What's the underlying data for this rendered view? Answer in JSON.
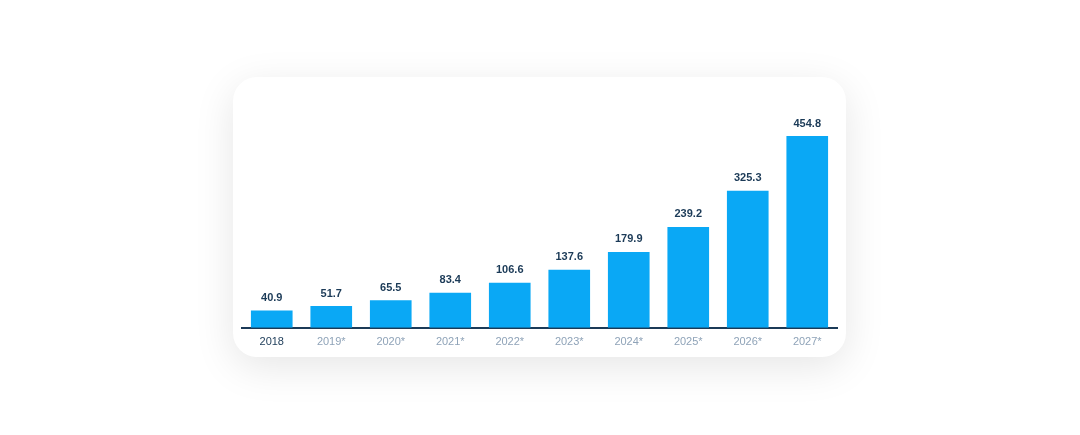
{
  "chart_data": {
    "type": "bar",
    "categories": [
      "2018",
      "2019*",
      "2020*",
      "2021*",
      "2022*",
      "2023*",
      "2024*",
      "2025*",
      "2026*",
      "2027*"
    ],
    "values": [
      40.9,
      51.7,
      65.5,
      83.4,
      106.6,
      137.6,
      179.9,
      239.2,
      325.3,
      454.8
    ],
    "color": "#0aa8f5",
    "data_labels": true,
    "grid": false,
    "legend": false,
    "tick_labels": "x"
  }
}
